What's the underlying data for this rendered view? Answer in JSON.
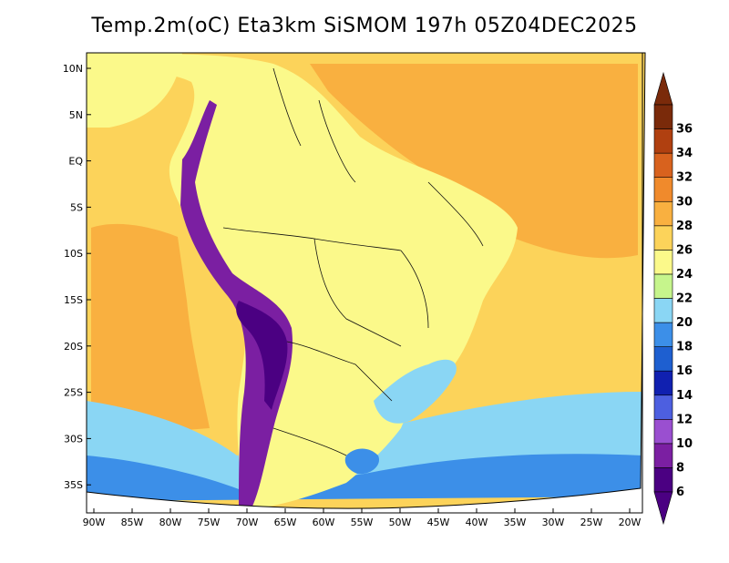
{
  "title": "Temp.2m(oC) Eta3km SiSMOM 197h 05Z04DEC2025",
  "lat_labels": [
    "10N",
    "5N",
    "EQ",
    "5S",
    "10S",
    "15S",
    "20S",
    "25S",
    "30S",
    "35S"
  ],
  "lon_labels": [
    "90W",
    "85W",
    "80W",
    "75W",
    "70W",
    "65W",
    "60W",
    "55W",
    "50W",
    "45W",
    "40W",
    "35W",
    "30W",
    "25W",
    "20W"
  ],
  "colorbar": {
    "labels": [
      "6",
      "8",
      "10",
      "12",
      "14",
      "16",
      "18",
      "20",
      "22",
      "24",
      "26",
      "28",
      "30",
      "32",
      "34",
      "36"
    ],
    "colors": [
      "#4b0082",
      "#7b1fa2",
      "#9a4fd0",
      "#4d5fe0",
      "#1020b0",
      "#1e5fd0",
      "#3c8fe8",
      "#8ad6f4",
      "#c6f58c",
      "#fbf98a",
      "#fcd35a",
      "#f9b040",
      "#f08a2c",
      "#d8621e",
      "#b04010",
      "#7a2a0a"
    ]
  },
  "field_colors": {
    "ocean_warm": "#f9b040",
    "ocean_mild": "#fcd35a",
    "ocean_cool": "#fbf98a",
    "land": "#fbf98a",
    "south_cool": "#8ad6f4",
    "south_cold": "#3c8fe8",
    "andes": "#7b1fa2",
    "andes_core": "#4b0082"
  }
}
